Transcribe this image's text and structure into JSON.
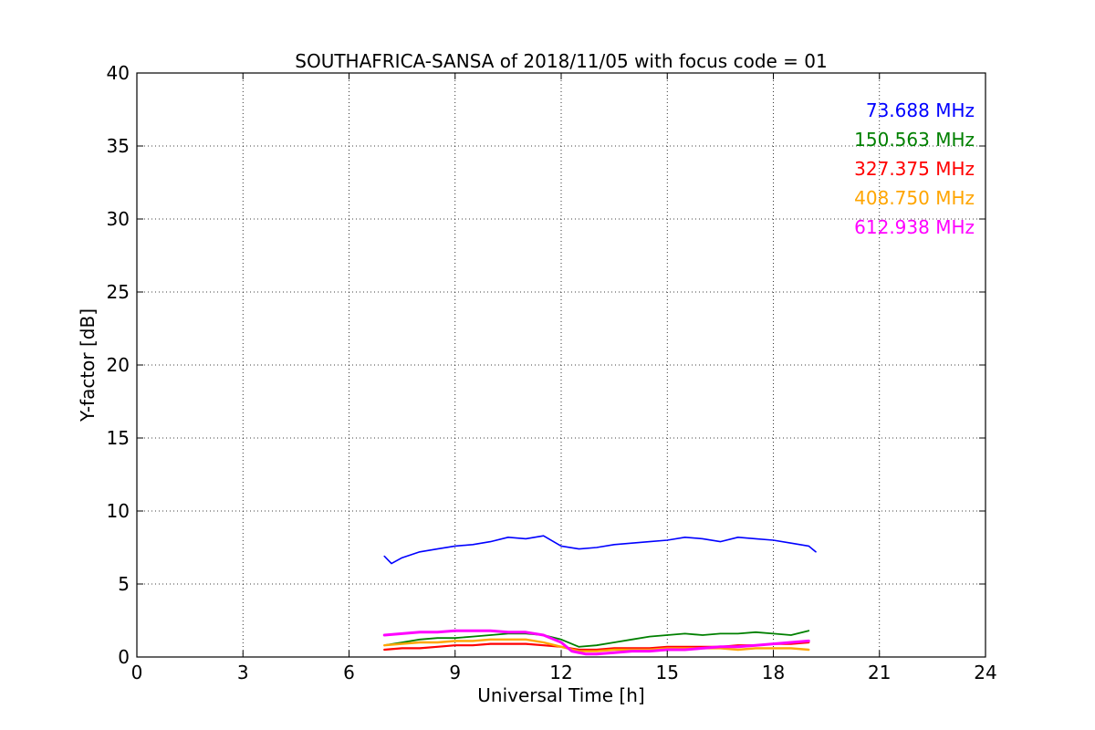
{
  "chart_data": {
    "type": "line",
    "title": "SOUTHAFRICA-SANSA of 2018/11/05 with focus code = 01",
    "xlabel": "Universal Time [h]",
    "ylabel": "Y-factor [dB]",
    "xlim": [
      0,
      24
    ],
    "ylim": [
      0,
      40
    ],
    "xticks": [
      "0",
      "3",
      "6",
      "9",
      "12",
      "15",
      "18",
      "21",
      "24"
    ],
    "yticks": [
      "0",
      "5",
      "10",
      "15",
      "20",
      "25",
      "30",
      "35",
      "40"
    ],
    "grid": true,
    "legend": "top-right",
    "series": [
      {
        "name": "73.688 MHz",
        "color": "#0000ff",
        "x": [
          7.0,
          7.2,
          7.5,
          8.0,
          8.5,
          9.0,
          9.5,
          10.0,
          10.5,
          11.0,
          11.5,
          12.0,
          12.5,
          13.0,
          13.5,
          14.0,
          14.5,
          15.0,
          15.5,
          16.0,
          16.5,
          17.0,
          17.5,
          18.0,
          18.5,
          19.0,
          19.2
        ],
        "y": [
          6.9,
          6.4,
          6.8,
          7.2,
          7.4,
          7.6,
          7.7,
          7.9,
          8.2,
          8.1,
          8.3,
          7.6,
          7.4,
          7.5,
          7.7,
          7.8,
          7.9,
          8.0,
          8.2,
          8.1,
          7.9,
          8.2,
          8.1,
          8.0,
          7.8,
          7.6,
          7.2
        ]
      },
      {
        "name": "150.563 MHz",
        "color": "#008000",
        "x": [
          7.0,
          7.5,
          8.0,
          8.5,
          9.0,
          9.5,
          10.0,
          10.5,
          11.0,
          11.5,
          12.0,
          12.5,
          13.0,
          13.5,
          14.0,
          14.5,
          15.0,
          15.5,
          16.0,
          16.5,
          17.0,
          17.5,
          18.0,
          18.5,
          19.0
        ],
        "y": [
          0.8,
          1.0,
          1.2,
          1.3,
          1.3,
          1.4,
          1.5,
          1.6,
          1.6,
          1.5,
          1.2,
          0.7,
          0.8,
          1.0,
          1.2,
          1.4,
          1.5,
          1.6,
          1.5,
          1.6,
          1.6,
          1.7,
          1.6,
          1.5,
          1.8
        ]
      },
      {
        "name": "327.375 MHz",
        "color": "#ff0000",
        "x": [
          7.0,
          7.5,
          8.0,
          8.5,
          9.0,
          9.5,
          10.0,
          10.5,
          11.0,
          11.5,
          12.0,
          12.5,
          13.0,
          13.5,
          14.0,
          14.5,
          15.0,
          15.5,
          16.0,
          16.5,
          17.0,
          17.5,
          18.0,
          18.5,
          19.0
        ],
        "y": [
          0.5,
          0.6,
          0.6,
          0.7,
          0.8,
          0.8,
          0.9,
          0.9,
          0.9,
          0.8,
          0.7,
          0.5,
          0.5,
          0.6,
          0.6,
          0.6,
          0.7,
          0.7,
          0.7,
          0.7,
          0.8,
          0.8,
          0.9,
          0.9,
          1.0
        ]
      },
      {
        "name": "408.750 MHz",
        "color": "#ffa500",
        "x": [
          7.0,
          7.5,
          8.0,
          8.5,
          9.0,
          9.5,
          10.0,
          10.5,
          11.0,
          11.5,
          12.0,
          12.5,
          13.0,
          13.5,
          14.0,
          14.5,
          15.0,
          15.5,
          16.0,
          16.5,
          17.0,
          17.5,
          18.0,
          18.5,
          19.0
        ],
        "y": [
          0.8,
          0.9,
          1.0,
          1.0,
          1.1,
          1.1,
          1.2,
          1.2,
          1.2,
          1.0,
          0.7,
          0.4,
          0.4,
          0.5,
          0.5,
          0.5,
          0.6,
          0.6,
          0.6,
          0.6,
          0.5,
          0.6,
          0.6,
          0.6,
          0.5
        ]
      },
      {
        "name": "612.938 MHz",
        "color": "#ff00ff",
        "x": [
          7.0,
          7.5,
          8.0,
          8.5,
          9.0,
          9.5,
          10.0,
          10.5,
          11.0,
          11.5,
          12.0,
          12.3,
          12.7,
          13.0,
          13.5,
          14.0,
          14.5,
          15.0,
          15.5,
          16.0,
          16.5,
          17.0,
          17.5,
          18.0,
          18.5,
          19.0
        ],
        "y": [
          1.5,
          1.6,
          1.7,
          1.7,
          1.8,
          1.8,
          1.8,
          1.7,
          1.7,
          1.5,
          1.0,
          0.4,
          0.2,
          0.2,
          0.3,
          0.4,
          0.4,
          0.5,
          0.5,
          0.6,
          0.7,
          0.7,
          0.8,
          0.9,
          1.0,
          1.1
        ]
      }
    ]
  }
}
